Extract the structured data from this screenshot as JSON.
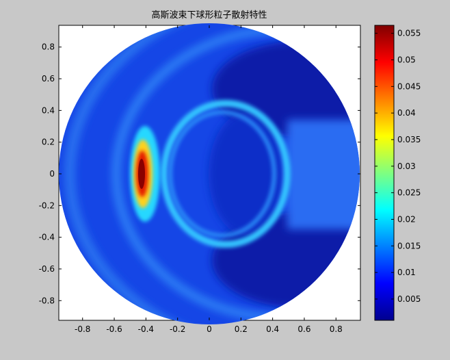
{
  "chart_data": {
    "type": "heatmap",
    "title": "高斯波束下球形粒子散射特性",
    "xlabel": "",
    "ylabel": "",
    "xlim": [
      -0.95,
      0.95
    ],
    "ylim": [
      -0.95,
      0.95
    ],
    "x_ticks": [
      "-0.8",
      "-0.6",
      "-0.4",
      "-0.2",
      "0",
      "0.2",
      "0.4",
      "0.6",
      "0.8"
    ],
    "y_ticks": [
      "0.8",
      "0.6",
      "0.4",
      "0.2",
      "0",
      "-0.2",
      "-0.4",
      "-0.6",
      "-0.8"
    ],
    "x_tick_values": [
      -0.8,
      -0.6,
      -0.4,
      -0.2,
      0,
      0.2,
      0.4,
      0.6,
      0.8
    ],
    "y_tick_values": [
      0.8,
      0.6,
      0.4,
      0.2,
      0,
      -0.2,
      -0.4,
      -0.6,
      -0.8
    ],
    "colorbar": {
      "range": [
        0.001,
        0.0565
      ],
      "ticks": [
        "0.055",
        "0.05",
        "0.045",
        "0.04",
        "0.035",
        "0.03",
        "0.025",
        "0.02",
        "0.015",
        "0.01",
        "0.005"
      ],
      "tick_values": [
        0.055,
        0.05,
        0.045,
        0.04,
        0.035,
        0.03,
        0.025,
        0.02,
        0.015,
        0.01,
        0.005
      ],
      "colormap": "jet"
    },
    "domain_shape": "circle",
    "domain_radius": 0.95,
    "grid": false,
    "features": [
      {
        "kind": "peak",
        "x": -0.43,
        "y": 0.0,
        "value": 0.056
      },
      {
        "kind": "arc",
        "center_x": 0.05,
        "radius": 0.36,
        "value": 0.017
      },
      {
        "kind": "arc",
        "center_x": 0.5,
        "radius": 0.7,
        "value": 0.017
      },
      {
        "kind": "arc",
        "center_x": 0.35,
        "radius": 1.05,
        "value": 0.014
      },
      {
        "kind": "background",
        "value": 0.008
      }
    ]
  }
}
